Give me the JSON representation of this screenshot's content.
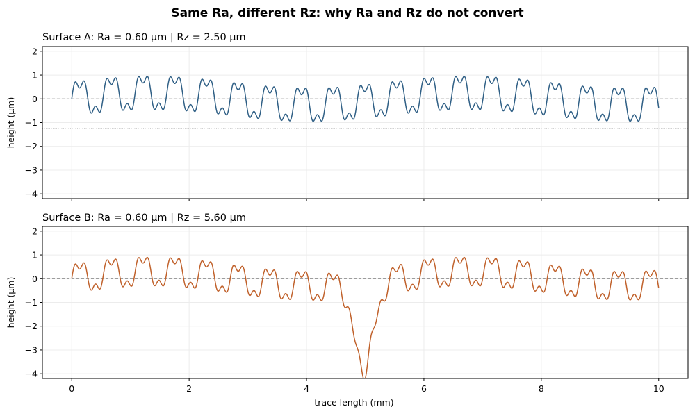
{
  "figure_title": "Same Ra, different Rz: why Ra and Rz do not convert",
  "colors": {
    "surface_a": "#2f5f85",
    "surface_b": "#c0612b",
    "zero_line": "#7f7f7f",
    "ref_line": "#a0a0a0",
    "grid": "#ececec"
  },
  "chart_data": [
    {
      "type": "line",
      "title": "Surface A:  Ra = 0.60 µm   |   Rz = 2.50 µm",
      "xlabel": "",
      "ylabel": "height (µm)",
      "xlim": [
        -0.5,
        10.5
      ],
      "ylim": [
        -4.2,
        2.2
      ],
      "xticks": [
        0,
        2,
        4,
        6,
        8,
        10
      ],
      "yticks": [
        -4,
        -3,
        -2,
        -1,
        0,
        1,
        2
      ],
      "show_xtick_labels": false,
      "grid": true,
      "zero_line": 0,
      "ref_lines": [
        1.25,
        -1.25
      ],
      "series": [
        {
          "color": "#2f5f85",
          "profile": {
            "x_range": [
              0,
              10
            ],
            "components": [
              {
                "amplitude": 0.7,
                "period_mm": 0.54
              },
              {
                "amplitude": 0.28,
                "period_mm": 0.18
              },
              {
                "amplitude": 0.25,
                "period_mm": 5.4
              }
            ],
            "pit": null
          }
        }
      ]
    },
    {
      "type": "line",
      "title": "Surface B:  Ra = 0.60 µm   |   Rz = 5.60 µm",
      "xlabel": "trace length (mm)",
      "ylabel": "height (µm)",
      "xlim": [
        -0.5,
        10.5
      ],
      "ylim": [
        -4.2,
        2.2
      ],
      "xticks": [
        0,
        2,
        4,
        6,
        8,
        10
      ],
      "yticks": [
        -4,
        -3,
        -2,
        -1,
        0,
        1,
        2
      ],
      "show_xtick_labels": true,
      "grid": true,
      "zero_line": 0,
      "ref_lines": [
        1.25
      ],
      "series": [
        {
          "color": "#c0612b",
          "profile": {
            "x_range": [
              0,
              10
            ],
            "components": [
              {
                "amplitude": 0.6,
                "period_mm": 0.54
              },
              {
                "amplitude": 0.24,
                "period_mm": 0.18
              },
              {
                "amplitude": 0.3,
                "period_mm": 5.4
              }
            ],
            "pit": {
              "center_mm": 4.98,
              "depth_um": 3.9,
              "width_mm": 0.11,
              "shoulder_um": 0.6,
              "shoulder_width_mm": 0.3
            }
          }
        }
      ]
    }
  ]
}
